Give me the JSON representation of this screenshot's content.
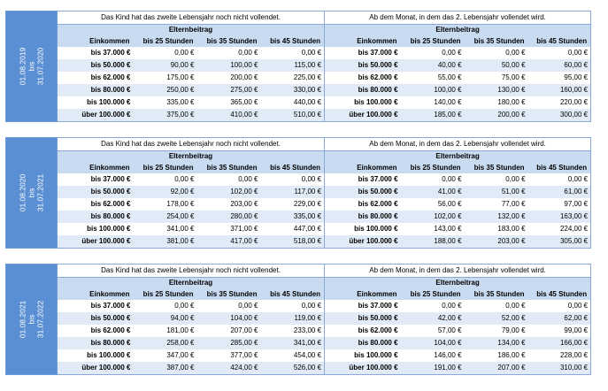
{
  "tables": [
    {
      "period": [
        "01.08.2019",
        "bis",
        "31.07.2020"
      ],
      "left_title": "Das Kind hat das zweite Lebensjahr noch nicht vollendet.",
      "right_title": "Ab dem Monat, in dem das 2. Lebensjahr vollendet wird.",
      "header": "Elternbeitrag",
      "columns": [
        "Einkommen",
        "bis 25 Stunden",
        "bis 35 Stunden",
        "bis 45 Stunden"
      ],
      "rows": [
        {
          "income": "bis 37.000 €",
          "left": [
            "0,00 €",
            "0,00 €",
            "0,00 €"
          ],
          "right": [
            "0,00 €",
            "0,00 €",
            "0,00 €"
          ]
        },
        {
          "income": "bis 50.000 €",
          "left": [
            "90,00 €",
            "100,00 €",
            "115,00 €"
          ],
          "right": [
            "40,00 €",
            "50,00 €",
            "60,00 €"
          ]
        },
        {
          "income": "bis 62.000 €",
          "left": [
            "175,00 €",
            "200,00 €",
            "225,00 €"
          ],
          "right": [
            "55,00 €",
            "75,00 €",
            "95,00 €"
          ]
        },
        {
          "income": "bis 80.000 €",
          "left": [
            "250,00 €",
            "275,00 €",
            "330,00 €"
          ],
          "right": [
            "100,00 €",
            "130,00 €",
            "160,00 €"
          ]
        },
        {
          "income": "bis 100.000 €",
          "left": [
            "335,00 €",
            "365,00 €",
            "440,00 €"
          ],
          "right": [
            "140,00 €",
            "180,00 €",
            "220,00 €"
          ]
        },
        {
          "income": "über 100.000 €",
          "left": [
            "375,00 €",
            "410,00 €",
            "510,00 €"
          ],
          "right": [
            "185,00 €",
            "200,00 €",
            "300,00 €"
          ]
        }
      ]
    },
    {
      "period": [
        "01.08.2020",
        "bis",
        "31.07.2021"
      ],
      "left_title": "Das Kind hat das zweite Lebensjahr noch nicht vollendet.",
      "right_title": "Ab dem Monat, in dem das 2. Lebensjahr vollendet wird.",
      "header": "Elternbeitrag",
      "columns": [
        "Einkommen",
        "bis 25 Stunden",
        "bis 35 Stunden",
        "bis 45 Stunden"
      ],
      "rows": [
        {
          "income": "bis 37.000 €",
          "left": [
            "0,00 €",
            "0,00 €",
            "0,00 €"
          ],
          "right": [
            "0,00 €",
            "0,00 €",
            "0,00 €"
          ]
        },
        {
          "income": "bis 50.000 €",
          "left": [
            "92,00 €",
            "102,00 €",
            "117,00 €"
          ],
          "right": [
            "41,00 €",
            "51,00 €",
            "61,00 €"
          ]
        },
        {
          "income": "bis 62.000 €",
          "left": [
            "178,00 €",
            "203,00 €",
            "229,00 €"
          ],
          "right": [
            "56,00 €",
            "77,00 €",
            "97,00 €"
          ]
        },
        {
          "income": "bis 80.000 €",
          "left": [
            "254,00 €",
            "280,00 €",
            "335,00 €"
          ],
          "right": [
            "102,00 €",
            "132,00 €",
            "163,00 €"
          ]
        },
        {
          "income": "bis 100.000 €",
          "left": [
            "341,00 €",
            "371,00 €",
            "447,00 €"
          ],
          "right": [
            "143,00 €",
            "183,00 €",
            "224,00 €"
          ]
        },
        {
          "income": "über 100.000 €",
          "left": [
            "381,00 €",
            "417,00 €",
            "518,00 €"
          ],
          "right": [
            "188,00 €",
            "203,00 €",
            "305,00 €"
          ]
        }
      ]
    },
    {
      "period": [
        "01.08.2021",
        "bis",
        "31.07.2022"
      ],
      "left_title": "Das Kind hat das zweite Lebensjahr noch nicht vollendet.",
      "right_title": "Ab dem Monat, in dem das 2. Lebensjahr vollendet wird.",
      "header": "Elternbeitrag",
      "columns": [
        "Einkommen",
        "bis 25 Stunden",
        "bis 35 Stunden",
        "bis 45 Stunden"
      ],
      "rows": [
        {
          "income": "bis 37.000 €",
          "left": [
            "0,00 €",
            "0,00 €",
            "0,00 €"
          ],
          "right": [
            "0,00 €",
            "0,00 €",
            "0,00 €"
          ]
        },
        {
          "income": "bis 50.000 €",
          "left": [
            "94,00 €",
            "104,00 €",
            "119,00 €"
          ],
          "right": [
            "42,00 €",
            "52,00 €",
            "62,00 €"
          ]
        },
        {
          "income": "bis 62.000 €",
          "left": [
            "181,00 €",
            "207,00 €",
            "233,00 €"
          ],
          "right": [
            "57,00 €",
            "79,00 €",
            "99,00 €"
          ]
        },
        {
          "income": "bis 80.000 €",
          "left": [
            "258,00 €",
            "285,00 €",
            "341,00 €"
          ],
          "right": [
            "104,00 €",
            "134,00 €",
            "166,00 €"
          ]
        },
        {
          "income": "bis 100.000 €",
          "left": [
            "347,00 €",
            "377,00 €",
            "454,00 €"
          ],
          "right": [
            "146,00 €",
            "186,00 €",
            "228,00 €"
          ]
        },
        {
          "income": "über 100.000 €",
          "left": [
            "387,00 €",
            "424,00 €",
            "526,00 €"
          ],
          "right": [
            "191,00 €",
            "207,00 €",
            "310,00 €"
          ]
        }
      ]
    }
  ]
}
